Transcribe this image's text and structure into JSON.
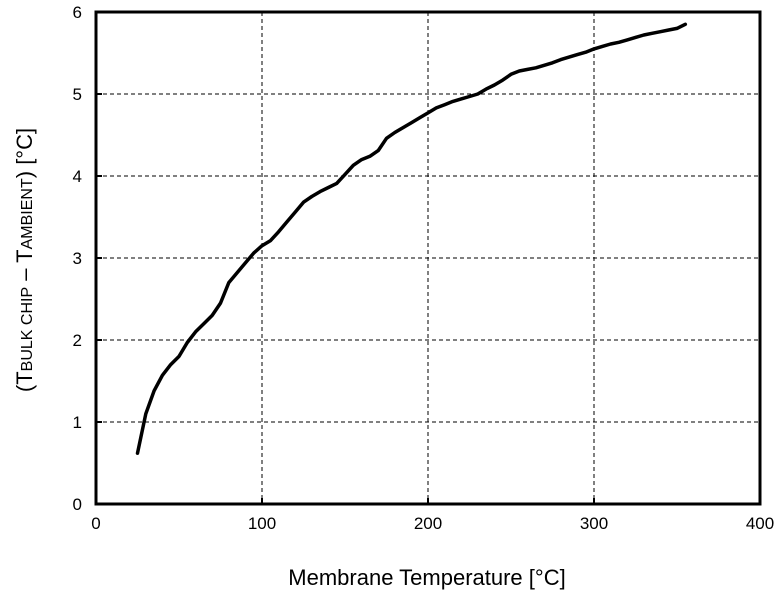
{
  "chart_data": {
    "type": "line",
    "title": "",
    "xlabel": "Membrane Temperature [°C]",
    "ylabel": {
      "open": "(T",
      "sub1": "BULK CHIP",
      "mid": " – T",
      "sub2": "AMBIENT",
      "close": ") [°C]"
    },
    "xlim": [
      0,
      400
    ],
    "ylim": [
      0,
      6
    ],
    "x_ticks": [
      0,
      100,
      200,
      300,
      400
    ],
    "y_ticks": [
      0,
      1,
      2,
      3,
      4,
      5,
      6
    ],
    "x_tick_labels": [
      "0",
      "100",
      "200",
      "300",
      "400"
    ],
    "y_tick_labels": [
      "0",
      "1",
      "2",
      "3",
      "4",
      "5",
      "6"
    ],
    "grid": true,
    "series_color": "#000000",
    "series": [
      {
        "x": [
          25,
          30,
          35,
          40,
          45,
          50,
          55,
          60,
          65,
          70,
          75,
          80,
          85,
          90,
          95,
          100,
          105,
          110,
          115,
          120,
          125,
          130,
          135,
          140,
          145,
          150,
          155,
          160,
          165,
          170,
          175,
          180,
          185,
          190,
          195,
          200,
          205,
          210,
          215,
          220,
          225,
          230,
          235,
          240,
          245,
          250,
          255,
          260,
          265,
          270,
          275,
          280,
          285,
          290,
          295,
          300,
          305,
          310,
          315,
          320,
          325,
          330,
          335,
          340,
          345,
          350,
          355
        ],
        "values": [
          0.62,
          1.1,
          1.38,
          1.57,
          1.7,
          1.8,
          1.97,
          2.1,
          2.2,
          2.3,
          2.45,
          2.7,
          2.82,
          2.94,
          3.06,
          3.15,
          3.21,
          3.32,
          3.44,
          3.56,
          3.68,
          3.75,
          3.81,
          3.86,
          3.91,
          4.02,
          4.13,
          4.2,
          4.24,
          4.31,
          4.46,
          4.53,
          4.59,
          4.65,
          4.71,
          4.77,
          4.83,
          4.87,
          4.91,
          4.94,
          4.97,
          5.0,
          5.06,
          5.11,
          5.17,
          5.24,
          5.28,
          5.3,
          5.32,
          5.35,
          5.38,
          5.42,
          5.45,
          5.48,
          5.51,
          5.55,
          5.58,
          5.61,
          5.63,
          5.66,
          5.69,
          5.72,
          5.74,
          5.76,
          5.78,
          5.8,
          5.85
        ]
      }
    ]
  }
}
